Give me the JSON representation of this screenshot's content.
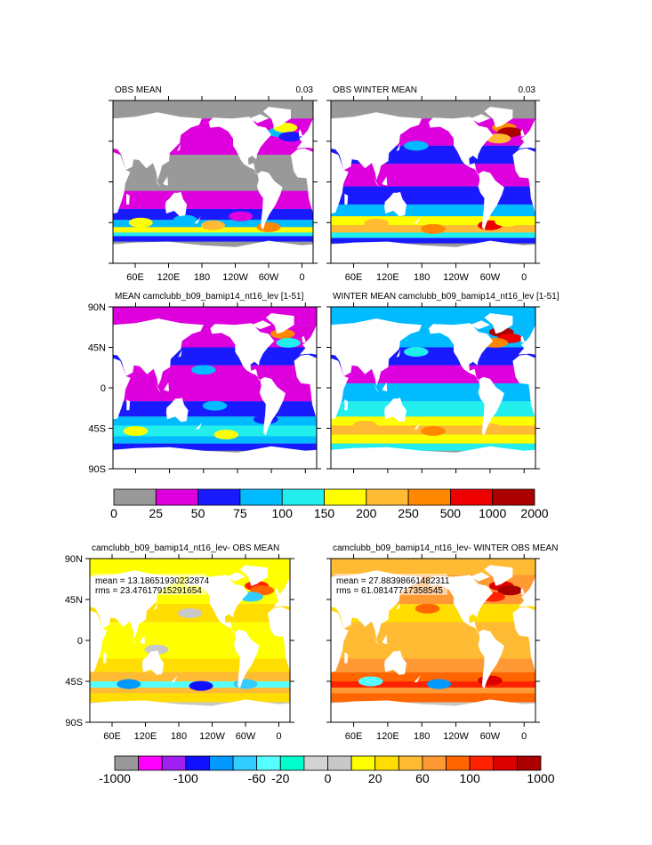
{
  "chart_data": {
    "type": "heatmap",
    "panels": [
      {
        "id": "obs-mean",
        "title_left": "OBS MEAN",
        "title_right": "0.03",
        "show_y_labels": false,
        "show_x_labels": true,
        "scale": "top",
        "style": "top-obs"
      },
      {
        "id": "obs-winter-mean",
        "title_left": "OBS WINTER MEAN",
        "title_right": "0.03",
        "show_y_labels": false,
        "show_x_labels": true,
        "scale": "top",
        "style": "top-obs-winter"
      },
      {
        "id": "model-mean",
        "title_left": "MEAN camclubb_b09_bamip14_nt16_lev [1-51]",
        "title_right": "",
        "show_y_labels": true,
        "show_x_labels": false,
        "scale": "top",
        "style": "top-model"
      },
      {
        "id": "model-winter-mean",
        "title_left": "WINTER MEAN camclubb_b09_bamip14_nt16_lev [1-51]",
        "title_right": "",
        "show_y_labels": false,
        "show_x_labels": false,
        "scale": "top",
        "style": "top-model-winter"
      },
      {
        "id": "diff-mean",
        "title_left": "camclubb_b09_bamip14_nt16_lev- OBS MEAN",
        "title_right": "",
        "mean_text": "mean = 13.18651930232874",
        "rms_text": "rms = 23.47617915291654",
        "show_y_labels": true,
        "show_x_labels": true,
        "scale": "diff",
        "style": "diff"
      },
      {
        "id": "diff-winter-mean",
        "title_left": "camclubb_b09_bamip14_nt16_lev- WINTER OBS MEAN",
        "title_right": "",
        "mean_text": "mean = 27.88398661482311",
        "rms_text": "rms = 61.08147717358545",
        "show_y_labels": false,
        "show_x_labels": true,
        "scale": "diff",
        "style": "diff-winter"
      }
    ],
    "x_ticks": [
      "60E",
      "120E",
      "180",
      "120W",
      "60W",
      "0"
    ],
    "x_tick_lons": [
      60,
      120,
      180,
      240,
      300,
      360
    ],
    "y_ticks": [
      "90N",
      "45N",
      "0",
      "45S",
      "90S"
    ],
    "y_tick_lats": [
      90,
      45,
      0,
      -45,
      -90
    ],
    "lon_range": [
      20,
      380
    ],
    "lat_range": [
      -90,
      90
    ],
    "top_colorbar": {
      "colors": [
        "#999999",
        "#dd00dd",
        "#1a1aff",
        "#00bbff",
        "#22eeee",
        "#ffff00",
        "#ffbb33",
        "#ff8800",
        "#ee0000",
        "#aa0000"
      ],
      "labels": [
        "0",
        "25",
        "50",
        "75",
        "100",
        "150",
        "200",
        "250",
        "500",
        "1000",
        "2000"
      ]
    },
    "diff_colorbar": {
      "colors": [
        "#999999",
        "#ff00ff",
        "#a020f0",
        "#1010ff",
        "#0099ff",
        "#33ccff",
        "#55ffff",
        "#00ffcc",
        "#d3d3d3",
        "#c8c8c8",
        "#ffff00",
        "#ffdd00",
        "#ffbb33",
        "#ff9933",
        "#ff6600",
        "#ff2200",
        "#dd0000",
        "#aa0000"
      ],
      "labels": [
        "-1000",
        "-100",
        "-60",
        "-20",
        "0",
        "20",
        "60",
        "100",
        "1000"
      ]
    }
  }
}
